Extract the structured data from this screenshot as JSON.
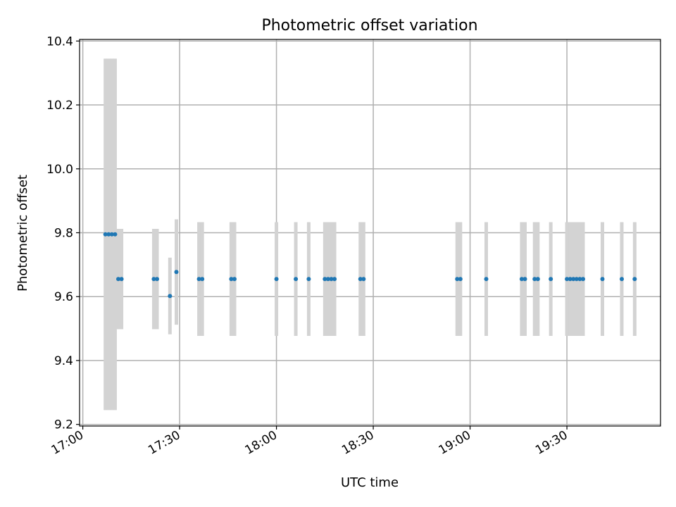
{
  "chart_data": {
    "type": "scatter",
    "title": "Photometric offset variation",
    "xlabel": "UTC time",
    "ylabel": "Photometric offset",
    "x_ticks": [
      "17:00",
      "17:30",
      "18:00",
      "18:30",
      "19:00",
      "19:30"
    ],
    "y_ticks": [
      "9.2",
      "9.4",
      "9.6",
      "9.8",
      "10.0",
      "10.2",
      "10.4"
    ],
    "xlim": [
      "16:59",
      "19:59"
    ],
    "ylim": [
      9.2,
      10.4
    ],
    "grid": true,
    "colors": {
      "points": "#1f77b4",
      "errorbars": "#d3d3d3",
      "grid": "#b0b0b0"
    },
    "points": [
      {
        "x": "17:07",
        "y": 9.795,
        "err": 0.55
      },
      {
        "x": "17:08",
        "y": 9.795,
        "err": 0.55
      },
      {
        "x": "17:09",
        "y": 9.795,
        "err": 0.55
      },
      {
        "x": "17:10",
        "y": 9.795,
        "err": 0.55
      },
      {
        "x": "17:11",
        "y": 9.655,
        "err": 0.157
      },
      {
        "x": "17:12",
        "y": 9.655,
        "err": 0.157
      },
      {
        "x": "17:22",
        "y": 9.655,
        "err": 0.157
      },
      {
        "x": "17:23",
        "y": 9.655,
        "err": 0.157
      },
      {
        "x": "17:27",
        "y": 9.602,
        "err": 0.12
      },
      {
        "x": "17:29",
        "y": 9.677,
        "err": 0.165
      },
      {
        "x": "17:36",
        "y": 9.655,
        "err": 0.178
      },
      {
        "x": "17:37",
        "y": 9.655,
        "err": 0.178
      },
      {
        "x": "17:46",
        "y": 9.655,
        "err": 0.178
      },
      {
        "x": "17:47",
        "y": 9.655,
        "err": 0.178
      },
      {
        "x": "18:00",
        "y": 9.655,
        "err": 0.178
      },
      {
        "x": "18:06",
        "y": 9.655,
        "err": 0.178
      },
      {
        "x": "18:10",
        "y": 9.655,
        "err": 0.178
      },
      {
        "x": "18:15",
        "y": 9.655,
        "err": 0.178
      },
      {
        "x": "18:16",
        "y": 9.655,
        "err": 0.178
      },
      {
        "x": "18:17",
        "y": 9.655,
        "err": 0.178
      },
      {
        "x": "18:18",
        "y": 9.655,
        "err": 0.178
      },
      {
        "x": "18:26",
        "y": 9.655,
        "err": 0.178
      },
      {
        "x": "18:27",
        "y": 9.655,
        "err": 0.178
      },
      {
        "x": "18:56",
        "y": 9.655,
        "err": 0.178
      },
      {
        "x": "18:57",
        "y": 9.655,
        "err": 0.178
      },
      {
        "x": "19:05",
        "y": 9.655,
        "err": 0.178
      },
      {
        "x": "19:16",
        "y": 9.655,
        "err": 0.178
      },
      {
        "x": "19:17",
        "y": 9.655,
        "err": 0.178
      },
      {
        "x": "19:20",
        "y": 9.655,
        "err": 0.178
      },
      {
        "x": "19:21",
        "y": 9.655,
        "err": 0.178
      },
      {
        "x": "19:25",
        "y": 9.655,
        "err": 0.178
      },
      {
        "x": "19:30",
        "y": 9.655,
        "err": 0.178
      },
      {
        "x": "19:31",
        "y": 9.655,
        "err": 0.178
      },
      {
        "x": "19:32",
        "y": 9.655,
        "err": 0.178
      },
      {
        "x": "19:33",
        "y": 9.655,
        "err": 0.178
      },
      {
        "x": "19:34",
        "y": 9.655,
        "err": 0.178
      },
      {
        "x": "19:35",
        "y": 9.655,
        "err": 0.178
      },
      {
        "x": "19:41",
        "y": 9.655,
        "err": 0.178
      },
      {
        "x": "19:47",
        "y": 9.655,
        "err": 0.178
      },
      {
        "x": "19:51",
        "y": 9.655,
        "err": 0.178
      }
    ]
  }
}
